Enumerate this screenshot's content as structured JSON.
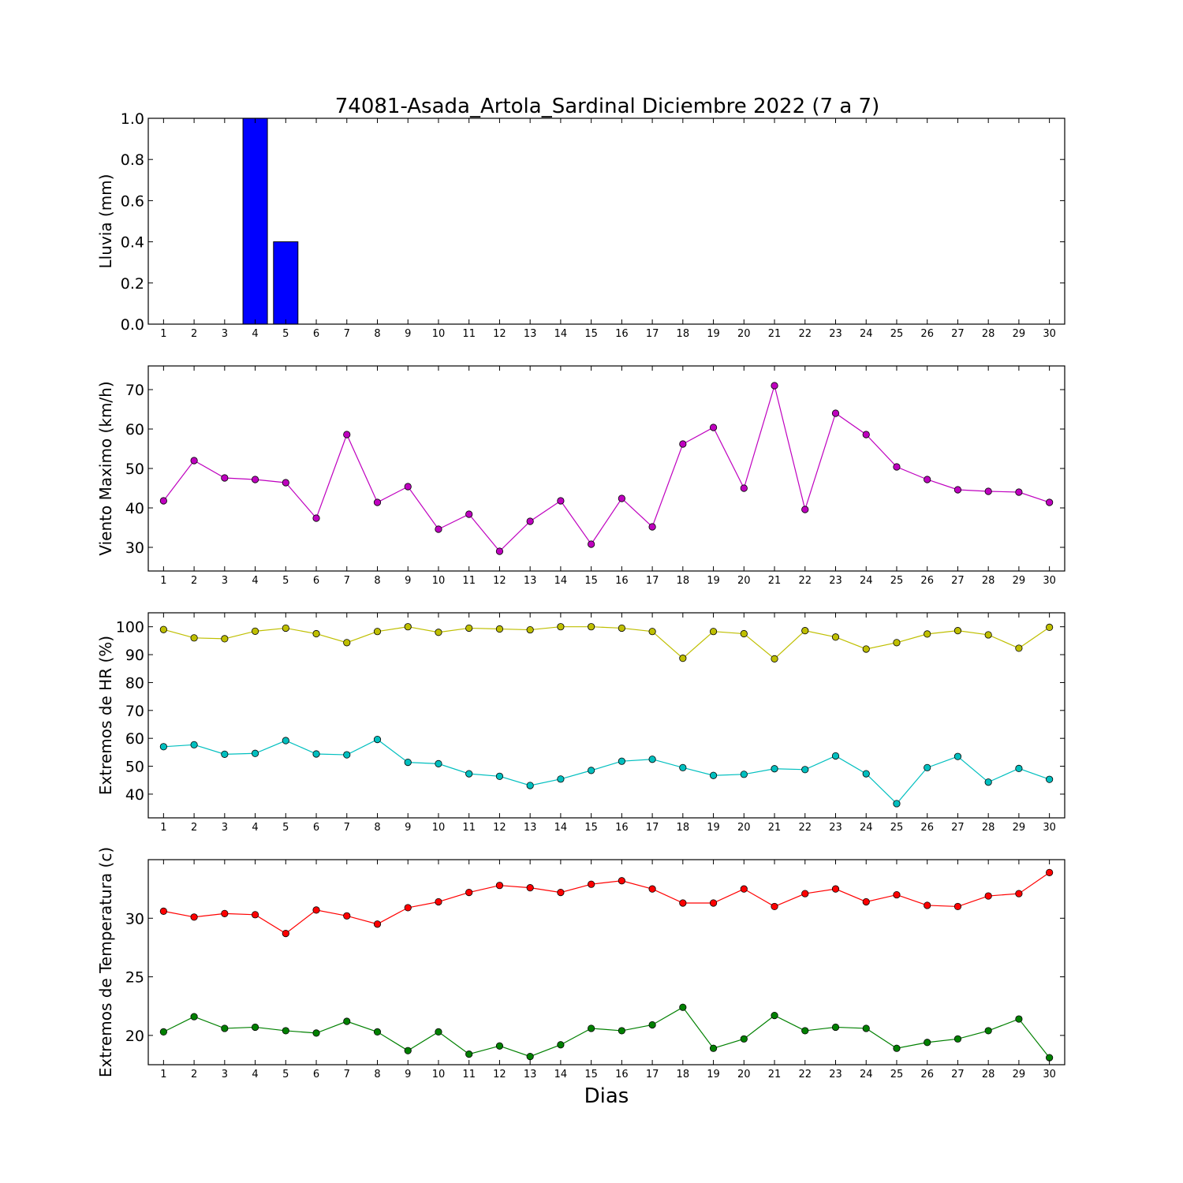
{
  "figure": {
    "title": "74081-Asada_Artola_Sardinal Diciembre 2022  (7 a 7)",
    "xlabel": "Dias"
  },
  "chart_data": [
    {
      "type": "bar",
      "ylabel": "Lluvia (mm)",
      "x": [
        1,
        2,
        3,
        4,
        5,
        6,
        7,
        8,
        9,
        10,
        11,
        12,
        13,
        14,
        15,
        16,
        17,
        18,
        19,
        20,
        21,
        22,
        23,
        24,
        25,
        26,
        27,
        28,
        29,
        30
      ],
      "values": [
        0,
        0,
        0,
        1.0,
        0.4,
        0,
        0,
        0,
        0,
        0,
        0,
        0,
        0,
        0,
        0,
        0,
        0,
        0,
        0,
        0,
        0,
        0,
        0,
        0,
        0,
        0,
        0,
        0,
        0,
        0
      ],
      "ylim": [
        0,
        1.0
      ],
      "yticks": [
        0.0,
        0.2,
        0.4,
        0.6,
        0.8,
        1.0
      ],
      "ytick_labels": [
        "0.0",
        "0.2",
        "0.4",
        "0.6",
        "0.8",
        "1.0"
      ],
      "color": "#0000ff",
      "grid": false
    },
    {
      "type": "line",
      "ylabel": "Viento Maximo (km/h)",
      "x": [
        1,
        2,
        3,
        4,
        5,
        6,
        7,
        8,
        9,
        10,
        11,
        12,
        13,
        14,
        15,
        16,
        17,
        18,
        19,
        20,
        21,
        22,
        23,
        24,
        25,
        26,
        27,
        28,
        29,
        30
      ],
      "series": [
        {
          "values": [
            41.8,
            52.0,
            47.6,
            47.2,
            46.4,
            37.4,
            58.6,
            41.4,
            45.4,
            34.6,
            38.4,
            29.0,
            36.6,
            41.8,
            30.8,
            42.4,
            35.2,
            56.2,
            60.4,
            45.0,
            71.0,
            39.6,
            64.0,
            58.6,
            50.4,
            47.2,
            44.6,
            44.2,
            44.0,
            41.4
          ],
          "color": "#bf00bf"
        }
      ],
      "ylim": [
        24,
        76
      ],
      "yticks": [
        30,
        40,
        50,
        60,
        70
      ],
      "ytick_labels": [
        "30",
        "40",
        "50",
        "60",
        "70"
      ],
      "grid": false
    },
    {
      "type": "line",
      "ylabel": "Extremos de HR (%)",
      "x": [
        1,
        2,
        3,
        4,
        5,
        6,
        7,
        8,
        9,
        10,
        11,
        12,
        13,
        14,
        15,
        16,
        17,
        18,
        19,
        20,
        21,
        22,
        23,
        24,
        25,
        26,
        27,
        28,
        29,
        30
      ],
      "series": [
        {
          "values": [
            99,
            96,
            95.7,
            98.4,
            99.5,
            97.5,
            94.3,
            98.3,
            100,
            98,
            99.5,
            99.2,
            98.9,
            100,
            100,
            99.5,
            98.3,
            88.7,
            98.3,
            97.5,
            88.5,
            98.6,
            96.3,
            92,
            94.3,
            97.4,
            98.6,
            97.1,
            92.3,
            99.8
          ],
          "color": "#bfbf00"
        },
        {
          "values": [
            57,
            57.7,
            54.3,
            54.6,
            59.2,
            54.4,
            54.1,
            59.6,
            51.4,
            50.9,
            47.3,
            46.4,
            43.1,
            45.4,
            48.5,
            51.8,
            52.5,
            49.5,
            46.7,
            47.1,
            49.1,
            48.8,
            53.7,
            47.3,
            36.6,
            49.5,
            53.5,
            44.3,
            49.2,
            45.3
          ],
          "color": "#00bfbf"
        }
      ],
      "ylim": [
        31.5,
        105
      ],
      "yticks": [
        40,
        50,
        60,
        70,
        80,
        90,
        100
      ],
      "ytick_labels": [
        "40",
        "50",
        "60",
        "70",
        "80",
        "90",
        "100"
      ],
      "grid": false
    },
    {
      "type": "line",
      "ylabel": "Extremos de Temperatura (c)",
      "x": [
        1,
        2,
        3,
        4,
        5,
        6,
        7,
        8,
        9,
        10,
        11,
        12,
        13,
        14,
        15,
        16,
        17,
        18,
        19,
        20,
        21,
        22,
        23,
        24,
        25,
        26,
        27,
        28,
        29,
        30
      ],
      "series": [
        {
          "values": [
            30.6,
            30.1,
            30.4,
            30.3,
            28.7,
            30.7,
            30.2,
            29.5,
            30.9,
            31.4,
            32.2,
            32.8,
            32.6,
            32.2,
            32.9,
            33.2,
            32.5,
            31.3,
            31.3,
            32.5,
            31.0,
            32.1,
            32.5,
            31.4,
            32.0,
            31.1,
            31.0,
            31.9,
            32.1,
            33.9
          ],
          "color": "#ff0000"
        },
        {
          "values": [
            20.3,
            21.6,
            20.6,
            20.7,
            20.4,
            20.2,
            21.2,
            20.3,
            18.7,
            20.3,
            18.4,
            19.1,
            18.2,
            19.2,
            20.6,
            20.4,
            20.9,
            22.4,
            18.9,
            19.7,
            21.7,
            20.4,
            20.7,
            20.6,
            18.9,
            19.4,
            19.7,
            20.4,
            21.4,
            18.1
          ],
          "color": "#008000"
        }
      ],
      "ylim": [
        17.5,
        35
      ],
      "yticks": [
        20,
        25,
        30
      ],
      "ytick_labels": [
        "20",
        "25",
        "30"
      ],
      "grid": false
    }
  ]
}
